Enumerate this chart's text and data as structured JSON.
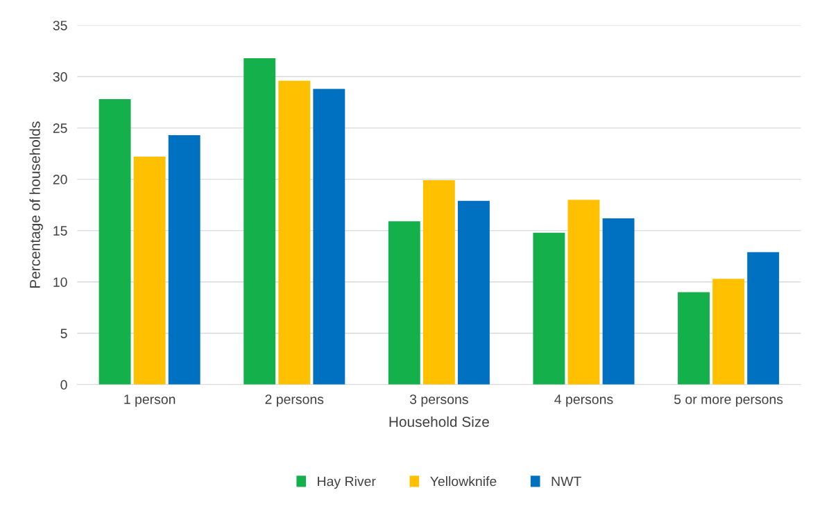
{
  "chart_data": {
    "type": "bar",
    "xlabel": "Household Size",
    "ylabel": "Percentage of households",
    "categories": [
      "1 person",
      "2 persons",
      "3 persons",
      "4 persons",
      "5 or more persons"
    ],
    "series": [
      {
        "name": "Hay River",
        "color": "#13b04b",
        "values": [
          27.8,
          31.8,
          15.9,
          14.8,
          9.0
        ]
      },
      {
        "name": "Yellowknife",
        "color": "#ffc000",
        "values": [
          22.2,
          29.6,
          19.9,
          18.0,
          10.3
        ]
      },
      {
        "name": "NWT",
        "color": "#0070c0",
        "values": [
          24.3,
          28.8,
          17.9,
          16.2,
          12.9
        ]
      }
    ],
    "ylim": [
      0,
      35
    ],
    "yticks": [
      0,
      5,
      10,
      15,
      20,
      25,
      30,
      35
    ],
    "grid": "y",
    "legend": "bottom"
  }
}
